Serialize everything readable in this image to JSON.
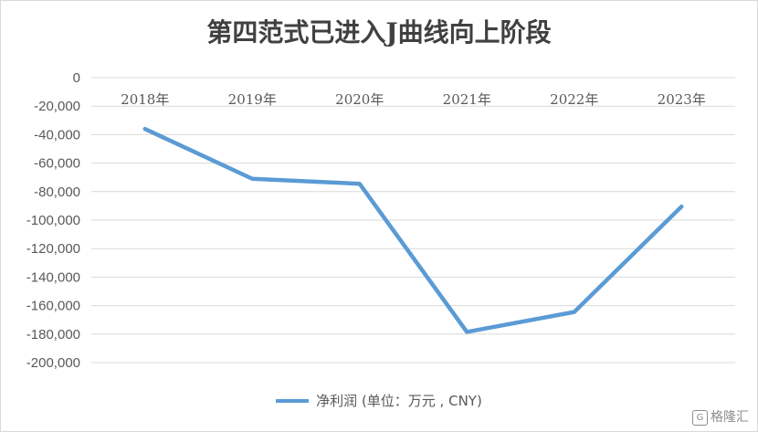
{
  "chart_data": {
    "type": "line",
    "title": "第四范式已进入J曲线向上阶段",
    "categories": [
      "2018年",
      "2019年",
      "2020年",
      "2021年",
      "2022年",
      "2023年"
    ],
    "series": [
      {
        "name": "净利润 (单位：万元 , CNY)",
        "values": [
          -36000,
          -71000,
          -74500,
          -178500,
          -164500,
          -90500
        ],
        "color": "#5b9bd5"
      }
    ],
    "y_ticks": [
      "0",
      "-20,000",
      "-40,000",
      "-60,000",
      "-80,000",
      "-100,000",
      "-120,000",
      "-140,000",
      "-160,000",
      "-180,000",
      "-200,000"
    ],
    "ylim": [
      -200000,
      0
    ],
    "x_axis_position": "top",
    "grid": true,
    "gridline_color": "#d9d9d9",
    "legend": "bottom"
  },
  "watermark": {
    "text": "格隆汇",
    "icon": "gelonghui-logo-icon"
  }
}
